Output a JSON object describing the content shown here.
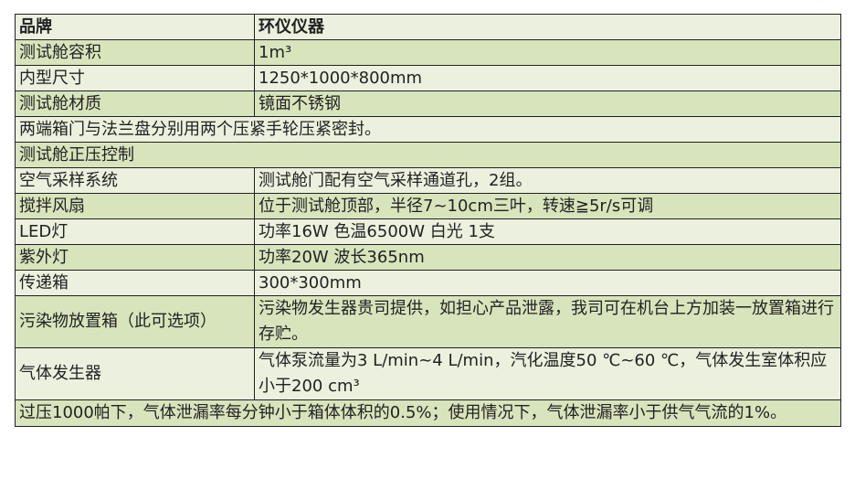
{
  "header": {
    "key": "品牌",
    "value": "环仪仪器"
  },
  "rows": [
    {
      "key": "测试舱容积",
      "value": "1m³"
    },
    {
      "key": "内型尺寸",
      "value": "1250*1000*800mm"
    },
    {
      "key": "测试舱材质",
      "value": "镜面不锈钢"
    },
    {
      "full": "两端箱门与法兰盘分别用两个压紧手轮压紧密封。"
    },
    {
      "full": "测试舱正压控制"
    },
    {
      "key": "空气采样系统",
      "value": "测试舱门配有空气采样通道孔，2组。"
    },
    {
      "key": "搅拌风扇",
      "value": "位于测试舱顶部，半径7~10cm三叶，转速≧5r/s可调"
    },
    {
      "key": "LED灯",
      "value": "功率16W 色温6500W  白光  1支"
    },
    {
      "key": "紫外灯",
      "value": "功率20W 波长365nm"
    },
    {
      "key": "传递箱",
      "value": "300*300mm"
    },
    {
      "key": "污染物放置箱（此可选项）",
      "value": "污染物发生器贵司提供，如担心产品泄露，我司可在机台上方加装一放置箱进行存贮。"
    },
    {
      "key": "气体发生器",
      "value": "气体泵流量为3 L/min~4 L/min，汽化温度50 ℃~60 ℃，气体发生室体积应小于200 cm³"
    },
    {
      "full": "过压1000帕下，气体泄漏率每分钟小于箱体体积的0.5%；使用情况下，气体泄漏率小于供气气流的1%。"
    }
  ],
  "colors": {
    "dark_row": "#d8e4bc",
    "light_row": "#ebf1de",
    "border": "#222222"
  }
}
